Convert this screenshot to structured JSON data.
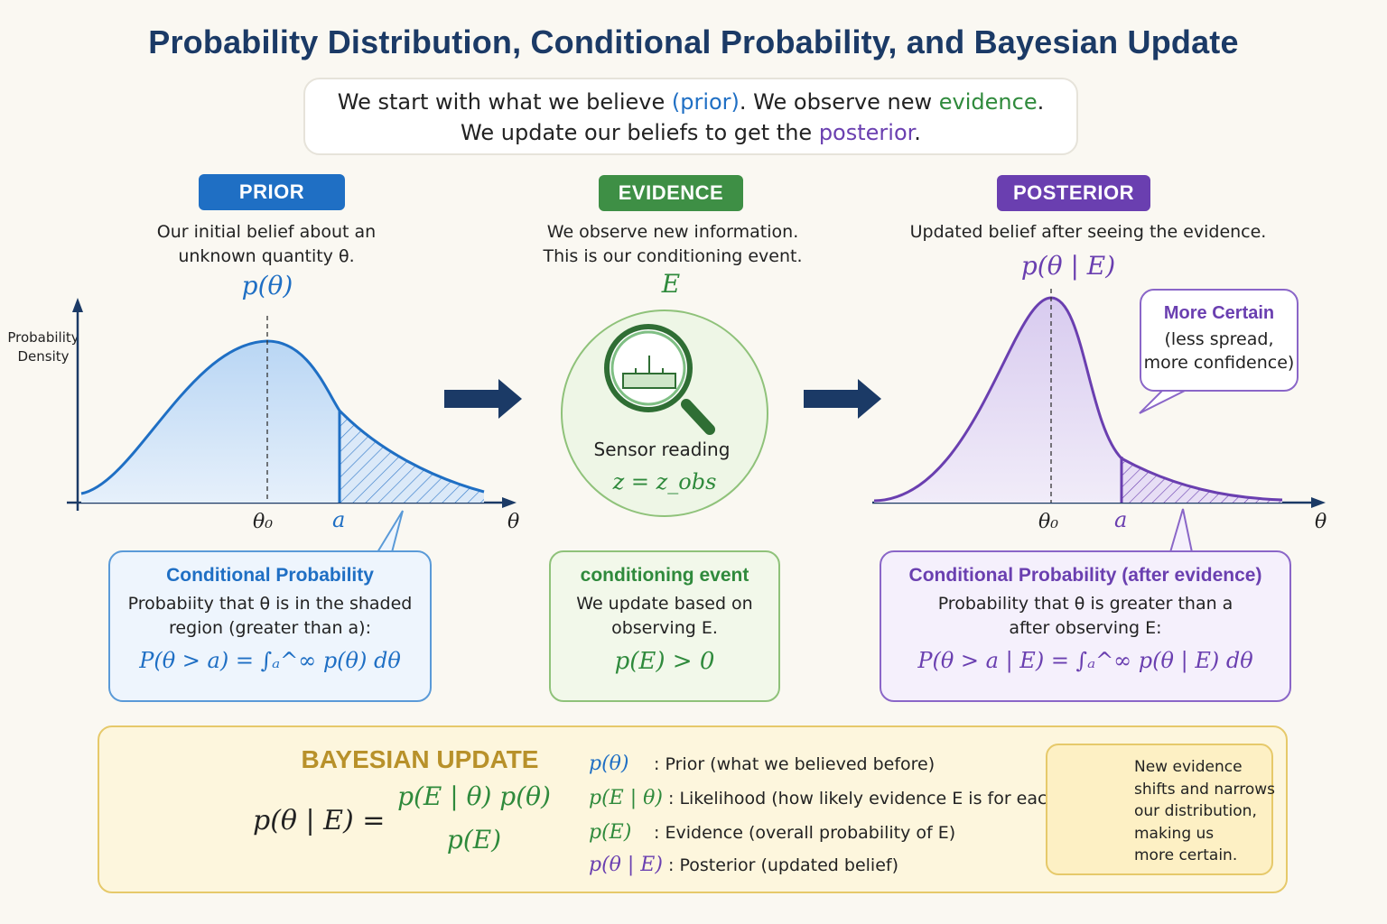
{
  "title": "Probability Distribution, Conditional Probability, and Bayesian Update",
  "intro": {
    "l1_a": "We start with what we believe ",
    "l1_prior": "(prior)",
    "l1_b": ". We observe new ",
    "l1_evidence": "evidence",
    "l1_c": ".",
    "l2_a": "We update our beliefs to get the ",
    "l2_posterior": "posterior",
    "l2_b": "."
  },
  "prior": {
    "label": "PRIOR",
    "desc1": "Our initial belief about an",
    "desc2": "unknown quantity θ.",
    "symbol": "p(θ)",
    "y_axis_1": "Probability",
    "y_axis_2": "Density",
    "x_tick_theta0": "θ₀",
    "x_tick_a": "a",
    "x_axis": "θ",
    "callout_title": "Conditional Probability",
    "callout_body1": "Probabiity that θ is in the shaded",
    "callout_body2": "region (greater than a):",
    "callout_formula": "P(θ > a) = ∫ₐ^∞ p(θ) dθ"
  },
  "evidence": {
    "label": "EVIDENCE",
    "desc1": "We observe new information.",
    "desc2": "This is our conditioning event.",
    "symbol": "E",
    "sensor_label": "Sensor reading",
    "sensor_formula": "z = z_obs",
    "callout_title": "conditioning event",
    "callout_body1": "We update based on",
    "callout_body2": "observing E.",
    "callout_formula": "p(E) > 0"
  },
  "posterior": {
    "label": "POSTERIOR",
    "desc1": "Updated belief after seeing the evidence.",
    "symbol": "p(θ | E)",
    "bubble_title": "More Certain",
    "bubble_body1": "(less spread,",
    "bubble_body2": "more confidence)",
    "x_tick_theta0": "θ₀",
    "x_tick_a": "a",
    "x_axis": "θ",
    "callout_title": "Conditional Probability (after evidence)",
    "callout_body1": "Probability that θ is greater than a",
    "callout_body2": "after observing E:",
    "callout_formula": "P(θ > a | E) = ∫ₐ^∞ p(θ | E) dθ"
  },
  "bayes": {
    "title": "BAYESIAN UPDATE",
    "lhs": "p(θ | E) =",
    "numerator": "p(E | θ) p(θ)",
    "denominator": "p(E)",
    "legend": [
      {
        "sym": "p(θ)",
        "text": ": Prior (what we believed before)",
        "color": "#1f6fc4"
      },
      {
        "sym": "p(E | θ)",
        "text": ": Likelihood (how likely evidence E is for each θ)",
        "color": "#2f8a3c"
      },
      {
        "sym": "p(E)",
        "text": ": Evidence (overall probability of E)",
        "color": "#2f8a3c"
      },
      {
        "sym": "p(θ | E)",
        "text": ": Posterior (updated belief)",
        "color": "#6a3fb0"
      }
    ],
    "tip1": "New evidence",
    "tip2": "shifts and narrows",
    "tip3": "our distribution,",
    "tip4": "making us",
    "tip5": "more certain."
  },
  "colors": {
    "prior": "#1f6fc4",
    "evidence": "#2f8a3c",
    "posterior": "#6a3fb0",
    "arrow": "#1b3a66",
    "bayes_title": "#b8912a"
  },
  "icons": [
    "right-arrow-icon",
    "magnifier-icon",
    "scales-icon",
    "lightbulb-icon"
  ]
}
